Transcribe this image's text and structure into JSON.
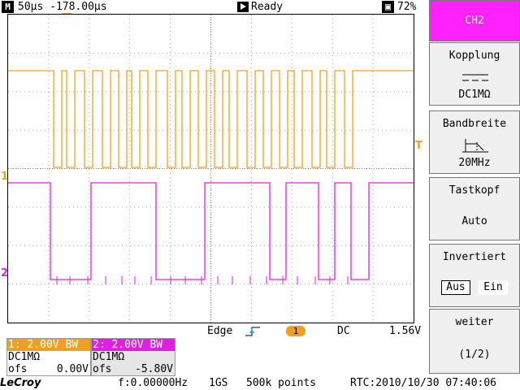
{
  "top_bar": {
    "mode_icon": "M",
    "timebase": "50µs",
    "trigger_offset": "-178.00µs",
    "run_icon": "play-icon",
    "status": "Ready",
    "battery_icon": "battery-icon",
    "battery": "72%"
  },
  "channel_markers": {
    "ch1": "1",
    "ch2": "2",
    "trigger_level": "T"
  },
  "trigger": {
    "type": "Edge",
    "slope_icon": "rising-edge-icon",
    "source": "1",
    "coupling": "DC",
    "level": "1.56V"
  },
  "ch1_box": {
    "header": "1: 2.00V  BW",
    "impedance": "DC1MΩ",
    "ofs_label": "ofs",
    "ofs_value": "0.00V"
  },
  "ch2_box": {
    "header": "2: 2.00V  BW",
    "impedance": "DC1MΩ",
    "ofs_label": "ofs",
    "ofs_value": "-5.80V"
  },
  "bottom_bar": {
    "brand": "LeCroy",
    "frequency": "f:0.00000Hz",
    "sample_rate": "1GS",
    "record_length": "500k points",
    "rtc": "RTC:2010/10/30 07:40:06"
  },
  "menu": {
    "channel": "CH2",
    "coupling_title": "Kopplung",
    "coupling_value": "DC1MΩ",
    "coupling_icon": "dc-coupling-icon",
    "bandwidth_title": "Bandbreite",
    "bandwidth_value": "20MHz",
    "bandwidth_icon": "lowpass-filter-icon",
    "probe_title": "Tastkopf",
    "probe_value": "Auto",
    "invert_title": "Invertiert",
    "invert_off": "Aus",
    "invert_on": "Ein",
    "next_title": "weiter",
    "next_page": "(1/2)"
  },
  "colors": {
    "ch1": "#f0a020",
    "ch2": "#e020e0",
    "menu_selected": "#ff22ff"
  }
}
